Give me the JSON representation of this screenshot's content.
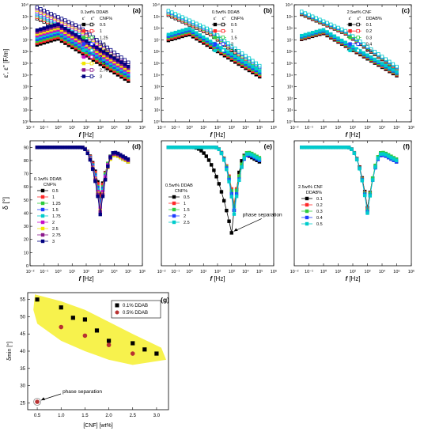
{
  "chart_data": [
    {
      "id": "a",
      "type": "line",
      "panel_label": "(a)",
      "xlabel": "f [Hz]",
      "ylabel": "ε', ε'' [F/m]",
      "xscale": "log",
      "yscale": "log",
      "xlim": [
        0.01,
        1000000
      ],
      "ylim": [
        1,
        10000000000
      ],
      "x_tick_labels": [
        "10⁻²",
        "10⁻¹",
        "10⁰",
        "10¹",
        "10²",
        "10³",
        "10⁴",
        "10⁵",
        "10⁶"
      ],
      "y_tick_labels": [
        "10⁰",
        "10¹",
        "10²",
        "10³",
        "10⁴",
        "10⁵",
        "10⁶",
        "10⁷",
        "10⁸",
        "10⁹",
        "10¹⁰"
      ],
      "legend": {
        "title": "0.1wt% DDAB",
        "col_headers": [
          "ε'",
          "ε''",
          "CNF%"
        ],
        "placement": "top-right"
      },
      "series": [
        {
          "name": "0.5",
          "color": "#000000"
        },
        {
          "name": "1",
          "color": "#ff2a2a"
        },
        {
          "name": "1.25",
          "color": "#2ecc40"
        },
        {
          "name": "1.5",
          "color": "#1f3fff"
        },
        {
          "name": "1.75",
          "color": "#00cccc"
        },
        {
          "name": "2",
          "color": "#c80fc8"
        },
        {
          "name": "2.5",
          "color": "#f2e600"
        },
        {
          "name": "2.75",
          "color": "#8c1a8c"
        },
        {
          "name": "3",
          "color": "#000080"
        }
      ]
    },
    {
      "id": "b",
      "type": "line",
      "panel_label": "(b)",
      "xlabel": "f [Hz]",
      "xscale": "log",
      "yscale": "log",
      "xlim": [
        0.01,
        1000000
      ],
      "ylim": [
        1,
        10000000000
      ],
      "x_tick_labels": [
        "10⁻²",
        "10⁻¹",
        "10⁰",
        "10¹",
        "10²",
        "10³",
        "10⁴",
        "10⁵",
        "10⁶"
      ],
      "y_tick_labels": [
        "10⁰",
        "10¹",
        "10²",
        "10³",
        "10⁴",
        "10⁵",
        "10⁶",
        "10⁷",
        "10⁸",
        "10⁹",
        "10¹⁰"
      ],
      "legend": {
        "title": "0.5wt% DDAB",
        "col_headers": [
          "ε'",
          "ε''",
          "CNF%"
        ],
        "placement": "top-right"
      },
      "series": [
        {
          "name": "0.5",
          "color": "#000000"
        },
        {
          "name": "1",
          "color": "#ff2a2a"
        },
        {
          "name": "1.5",
          "color": "#2ecc40"
        },
        {
          "name": "2",
          "color": "#1f3fff"
        },
        {
          "name": "2.5",
          "color": "#00cccc"
        }
      ]
    },
    {
      "id": "c",
      "type": "line",
      "panel_label": "(c)",
      "xlabel": "f [Hz]",
      "xscale": "log",
      "yscale": "log",
      "xlim": [
        0.01,
        1000000
      ],
      "ylim": [
        1,
        10000000000
      ],
      "x_tick_labels": [
        "10⁻²",
        "10⁻¹",
        "10⁰",
        "10¹",
        "10²",
        "10³",
        "10⁴",
        "10⁵",
        "10⁶"
      ],
      "y_tick_labels": [
        "10⁰",
        "10¹",
        "10²",
        "10³",
        "10⁴",
        "10⁵",
        "10⁶",
        "10⁷",
        "10⁸",
        "10⁹",
        "10¹⁰"
      ],
      "legend": {
        "title": "2.5wt% CNF",
        "col_headers": [
          "ε'",
          "ε''",
          "DDAB%"
        ],
        "placement": "top-right"
      },
      "series": [
        {
          "name": "0.1",
          "color": "#000000"
        },
        {
          "name": "0.2",
          "color": "#ff2a2a"
        },
        {
          "name": "0.3",
          "color": "#2ecc40"
        },
        {
          "name": "0.4",
          "color": "#1f3fff"
        },
        {
          "name": "0.5",
          "color": "#00cccc"
        }
      ]
    },
    {
      "id": "d",
      "type": "line",
      "panel_label": "(d)",
      "xlabel": "f [Hz]",
      "ylabel": "δ [°]",
      "xscale": "log",
      "xlim": [
        0.01,
        1000000
      ],
      "ylim": [
        0,
        95
      ],
      "x_tick_labels": [
        "10⁻²",
        "10⁻¹",
        "10⁰",
        "10¹",
        "10²",
        "10³",
        "10⁴",
        "10⁵",
        "10⁶"
      ],
      "y_ticks": [
        0,
        10,
        20,
        30,
        40,
        50,
        60,
        70,
        80,
        90
      ],
      "legend": {
        "title": "0.1wt% DDAB",
        "subtitle": "CNF%",
        "placement": "left"
      },
      "minima_x": 1000,
      "series": [
        {
          "name": "0.5",
          "color": "#000000",
          "min": 54
        },
        {
          "name": "1",
          "color": "#ff2a2a",
          "min": 52
        },
        {
          "name": "1.25",
          "color": "#2ecc40",
          "min": 49
        },
        {
          "name": "1.5",
          "color": "#1f3fff",
          "min": 48
        },
        {
          "name": "1.75",
          "color": "#00cccc",
          "min": 46
        },
        {
          "name": "2",
          "color": "#c80fc8",
          "min": 44
        },
        {
          "name": "2.5",
          "color": "#f2e600",
          "min": 42
        },
        {
          "name": "2.75",
          "color": "#8c1a8c",
          "min": 41
        },
        {
          "name": "3",
          "color": "#000080",
          "min": 39
        }
      ]
    },
    {
      "id": "e",
      "type": "line",
      "panel_label": "(e)",
      "xlabel": "f [Hz]",
      "xscale": "log",
      "xlim": [
        0.01,
        1000000
      ],
      "ylim": [
        0,
        95
      ],
      "x_tick_labels": [
        "10⁻²",
        "10⁻¹",
        "10⁰",
        "10¹",
        "10²",
        "10³",
        "10⁴",
        "10⁵",
        "10⁶"
      ],
      "legend": {
        "title": "0.5wt% DDAB",
        "subtitle": "CNF%",
        "placement": "left"
      },
      "annotation": "phase separation",
      "series": [
        {
          "name": "0.5",
          "color": "#000000",
          "min": 25,
          "min_x": 1000
        },
        {
          "name": "1",
          "color": "#ff2a2a",
          "min": 47,
          "min_x": 1500
        },
        {
          "name": "1.5",
          "color": "#2ecc40",
          "min": 45,
          "min_x": 1500
        },
        {
          "name": "2",
          "color": "#1f3fff",
          "min": 42,
          "min_x": 1500
        },
        {
          "name": "2.5",
          "color": "#00cccc",
          "min": 39,
          "min_x": 1500
        }
      ]
    },
    {
      "id": "f",
      "type": "line",
      "panel_label": "(f)",
      "xlabel": "f [Hz]",
      "xscale": "log",
      "xlim": [
        0.01,
        1000000
      ],
      "ylim": [
        0,
        95
      ],
      "x_tick_labels": [
        "10⁻²",
        "10⁻¹",
        "10⁰",
        "10¹",
        "10²",
        "10³",
        "10⁴",
        "10⁵",
        "10⁶"
      ],
      "legend": {
        "title": "2.5wt% CNF",
        "subtitle": "DDAB%",
        "placement": "left"
      },
      "minima_x": 1000,
      "series": [
        {
          "name": "0.1",
          "color": "#000000",
          "min": 44
        },
        {
          "name": "0.2",
          "color": "#ff2a2a",
          "min": 43
        },
        {
          "name": "0.3",
          "color": "#2ecc40",
          "min": 42
        },
        {
          "name": "0.4",
          "color": "#1f3fff",
          "min": 41
        },
        {
          "name": "0.5",
          "color": "#00cccc",
          "min": 40
        }
      ]
    },
    {
      "id": "g",
      "type": "scatter",
      "panel_label": "(g)",
      "xlabel": "[CNF] [wt%]",
      "ylabel": "δmin [°]",
      "xlim": [
        0.3,
        3.25
      ],
      "ylim": [
        23,
        57
      ],
      "x_ticks": [
        0.5,
        1.0,
        1.5,
        2.0,
        2.5,
        3.0
      ],
      "y_ticks": [
        25,
        30,
        35,
        40,
        45,
        50,
        55
      ],
      "legend_placement": "top-right",
      "annotation": "phase separation",
      "band_color": "#f7f24d",
      "series": [
        {
          "name": "0.1% DDAB",
          "color": "#000000",
          "marker": "square",
          "x": [
            0.5,
            1.0,
            1.25,
            1.5,
            1.75,
            2.0,
            2.5,
            2.75,
            3.0
          ],
          "y": [
            55,
            52.7,
            49.7,
            49.2,
            46,
            43,
            42.3,
            40.5,
            39.3
          ]
        },
        {
          "name": "0.5% DDAB",
          "color": "#b83232",
          "marker": "circle",
          "x": [
            0.5,
            1.0,
            1.5,
            2.0,
            2.5
          ],
          "y": [
            25.3,
            47,
            44.5,
            41.8,
            39.3
          ]
        }
      ]
    }
  ]
}
